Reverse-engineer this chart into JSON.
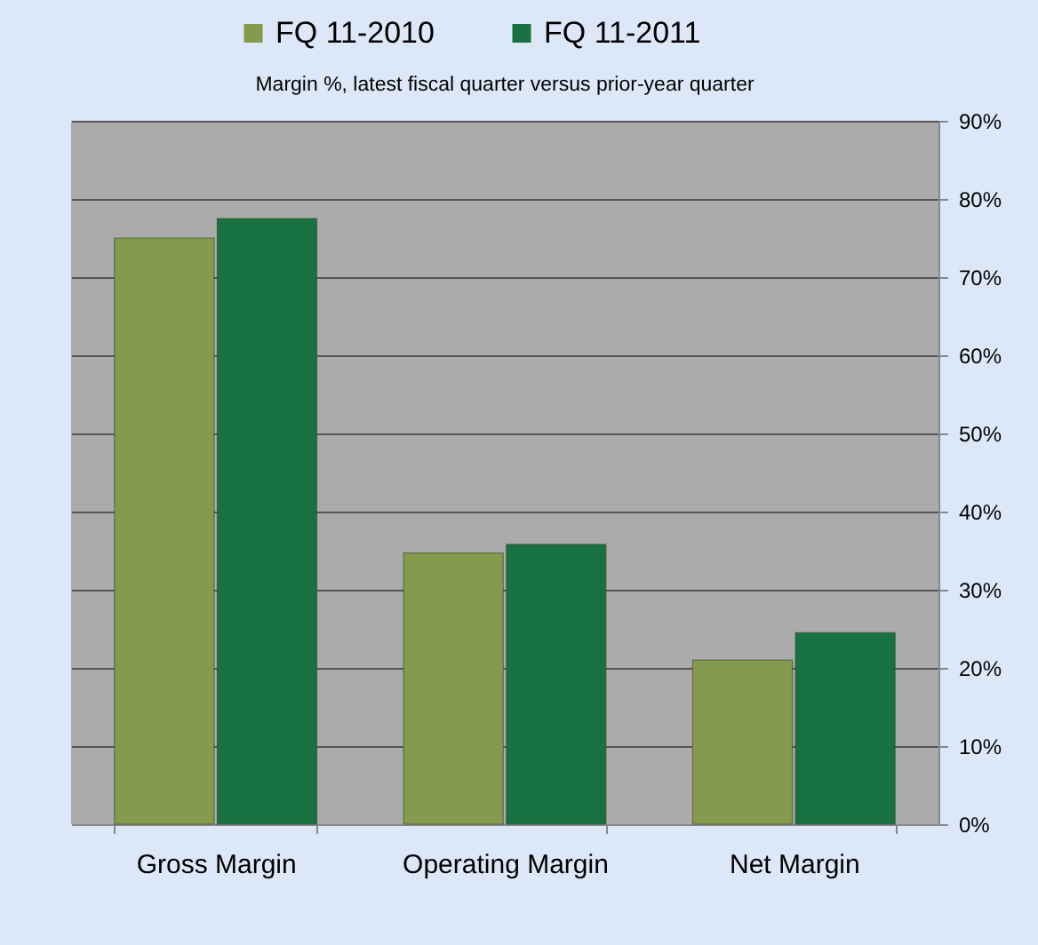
{
  "chart_data": {
    "type": "bar",
    "title": "Margin %, latest fiscal quarter versus prior-year quarter",
    "categories": [
      "Gross Margin",
      "Operating Margin",
      "Net Margin"
    ],
    "series": [
      {
        "name": "FQ 11-2010",
        "color": "#849a4c",
        "values": [
          75,
          34.7,
          21
        ]
      },
      {
        "name": "FQ 11-2011",
        "color": "#177140",
        "values": [
          77.5,
          35.8,
          24.5
        ]
      }
    ],
    "ylim": [
      0,
      90
    ],
    "yticks": [
      {
        "value": 0,
        "label": "0%"
      },
      {
        "value": 10,
        "label": "10%"
      },
      {
        "value": 20,
        "label": "20%"
      },
      {
        "value": 30,
        "label": "30%"
      },
      {
        "value": 40,
        "label": "40%"
      },
      {
        "value": 50,
        "label": "50%"
      },
      {
        "value": 60,
        "label": "60%"
      },
      {
        "value": 70,
        "label": "70%"
      },
      {
        "value": 80,
        "label": "80%"
      },
      {
        "value": 90,
        "label": "90%"
      }
    ],
    "grid": "y",
    "legend": "top"
  }
}
